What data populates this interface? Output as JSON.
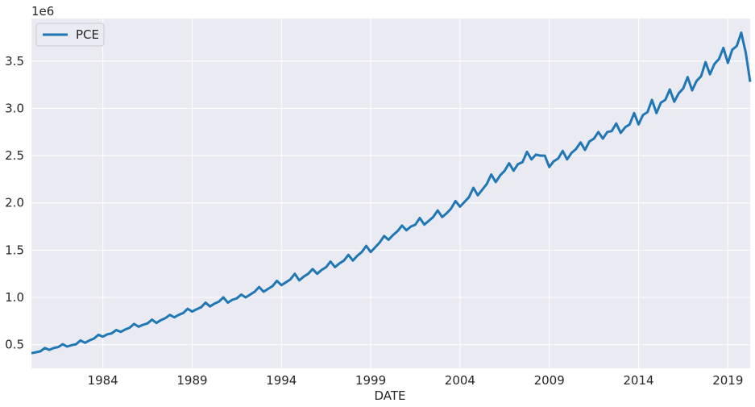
{
  "chart_data": {
    "type": "line",
    "title": "",
    "xlabel": "DATE",
    "ylabel": "",
    "y_offset_text": "1e6",
    "x_range": [
      1980.0,
      2020.25
    ],
    "ylim": [
      250000,
      3950000
    ],
    "x_ticks": [
      1984,
      1989,
      1994,
      1999,
      2004,
      2009,
      2014,
      2019
    ],
    "y_ticks": [
      500000,
      1000000,
      1500000,
      2000000,
      2500000,
      3000000,
      3500000
    ],
    "y_tick_labels": [
      "0.5",
      "1.0",
      "1.5",
      "2.0",
      "2.5",
      "3.0",
      "3.5"
    ],
    "grid": true,
    "legend_position": "top-left",
    "colors": {
      "line": "#1f77b4",
      "background": "#eaeaf2",
      "grid": "#ffffff"
    },
    "series": [
      {
        "name": "PCE",
        "x": [
          "1980-Q1",
          "1980-Q2",
          "1980-Q3",
          "1980-Q4",
          "1981-Q1",
          "1981-Q2",
          "1981-Q3",
          "1981-Q4",
          "1982-Q1",
          "1982-Q2",
          "1982-Q3",
          "1982-Q4",
          "1983-Q1",
          "1983-Q2",
          "1983-Q3",
          "1983-Q4",
          "1984-Q1",
          "1984-Q2",
          "1984-Q3",
          "1984-Q4",
          "1985-Q1",
          "1985-Q2",
          "1985-Q3",
          "1985-Q4",
          "1986-Q1",
          "1986-Q2",
          "1986-Q3",
          "1986-Q4",
          "1987-Q1",
          "1987-Q2",
          "1987-Q3",
          "1987-Q4",
          "1988-Q1",
          "1988-Q2",
          "1988-Q3",
          "1988-Q4",
          "1989-Q1",
          "1989-Q2",
          "1989-Q3",
          "1989-Q4",
          "1990-Q1",
          "1990-Q2",
          "1990-Q3",
          "1990-Q4",
          "1991-Q1",
          "1991-Q2",
          "1991-Q3",
          "1991-Q4",
          "1992-Q1",
          "1992-Q2",
          "1992-Q3",
          "1992-Q4",
          "1993-Q1",
          "1993-Q2",
          "1993-Q3",
          "1993-Q4",
          "1994-Q1",
          "1994-Q2",
          "1994-Q3",
          "1994-Q4",
          "1995-Q1",
          "1995-Q2",
          "1995-Q3",
          "1995-Q4",
          "1996-Q1",
          "1996-Q2",
          "1996-Q3",
          "1996-Q4",
          "1997-Q1",
          "1997-Q2",
          "1997-Q3",
          "1997-Q4",
          "1998-Q1",
          "1998-Q2",
          "1998-Q3",
          "1998-Q4",
          "1999-Q1",
          "1999-Q2",
          "1999-Q3",
          "1999-Q4",
          "2000-Q1",
          "2000-Q2",
          "2000-Q3",
          "2000-Q4",
          "2001-Q1",
          "2001-Q2",
          "2001-Q3",
          "2001-Q4",
          "2002-Q1",
          "2002-Q2",
          "2002-Q3",
          "2002-Q4",
          "2003-Q1",
          "2003-Q2",
          "2003-Q3",
          "2003-Q4",
          "2004-Q1",
          "2004-Q2",
          "2004-Q3",
          "2004-Q4",
          "2005-Q1",
          "2005-Q2",
          "2005-Q3",
          "2005-Q4",
          "2006-Q1",
          "2006-Q2",
          "2006-Q3",
          "2006-Q4",
          "2007-Q1",
          "2007-Q2",
          "2007-Q3",
          "2007-Q4",
          "2008-Q1",
          "2008-Q2",
          "2008-Q3",
          "2008-Q4",
          "2009-Q1",
          "2009-Q2",
          "2009-Q3",
          "2009-Q4",
          "2010-Q1",
          "2010-Q2",
          "2010-Q3",
          "2010-Q4",
          "2011-Q1",
          "2011-Q2",
          "2011-Q3",
          "2011-Q4",
          "2012-Q1",
          "2012-Q2",
          "2012-Q3",
          "2012-Q4",
          "2013-Q1",
          "2013-Q2",
          "2013-Q3",
          "2013-Q4",
          "2014-Q1",
          "2014-Q2",
          "2014-Q3",
          "2014-Q4",
          "2015-Q1",
          "2015-Q2",
          "2015-Q3",
          "2015-Q4",
          "2016-Q1",
          "2016-Q2",
          "2016-Q3",
          "2016-Q4",
          "2017-Q1",
          "2017-Q2",
          "2017-Q3",
          "2017-Q4",
          "2018-Q1",
          "2018-Q2",
          "2018-Q3",
          "2018-Q4",
          "2019-Q1",
          "2019-Q2",
          "2019-Q3",
          "2019-Q4",
          "2020-Q1",
          "2020-Q2"
        ],
        "values": [
          410000,
          420000,
          430000,
          465000,
          445000,
          465000,
          475000,
          505000,
          480000,
          495000,
          505000,
          545000,
          520000,
          545000,
          565000,
          605000,
          585000,
          610000,
          620000,
          655000,
          635000,
          660000,
          680000,
          720000,
          690000,
          710000,
          725000,
          765000,
          730000,
          760000,
          780000,
          815000,
          790000,
          815000,
          835000,
          880000,
          850000,
          875000,
          895000,
          945000,
          905000,
          935000,
          955000,
          1000000,
          945000,
          975000,
          990000,
          1030000,
          1000000,
          1030000,
          1060000,
          1110000,
          1060000,
          1090000,
          1120000,
          1175000,
          1130000,
          1160000,
          1190000,
          1250000,
          1180000,
          1220000,
          1250000,
          1300000,
          1250000,
          1290000,
          1320000,
          1380000,
          1320000,
          1360000,
          1390000,
          1450000,
          1390000,
          1440000,
          1480000,
          1545000,
          1480000,
          1530000,
          1580000,
          1650000,
          1610000,
          1660000,
          1700000,
          1760000,
          1710000,
          1750000,
          1770000,
          1840000,
          1770000,
          1810000,
          1850000,
          1920000,
          1850000,
          1890000,
          1940000,
          2020000,
          1960000,
          2010000,
          2060000,
          2160000,
          2080000,
          2140000,
          2200000,
          2300000,
          2220000,
          2290000,
          2340000,
          2420000,
          2340000,
          2410000,
          2430000,
          2540000,
          2460000,
          2510000,
          2500000,
          2500000,
          2380000,
          2440000,
          2470000,
          2550000,
          2460000,
          2530000,
          2570000,
          2640000,
          2560000,
          2650000,
          2680000,
          2750000,
          2680000,
          2750000,
          2760000,
          2840000,
          2740000,
          2800000,
          2830000,
          2950000,
          2830000,
          2930000,
          2960000,
          3090000,
          2950000,
          3060000,
          3090000,
          3200000,
          3070000,
          3160000,
          3210000,
          3330000,
          3190000,
          3290000,
          3340000,
          3490000,
          3360000,
          3470000,
          3520000,
          3640000,
          3480000,
          3620000,
          3660000,
          3800000,
          3590000,
          3280000
        ]
      }
    ]
  }
}
